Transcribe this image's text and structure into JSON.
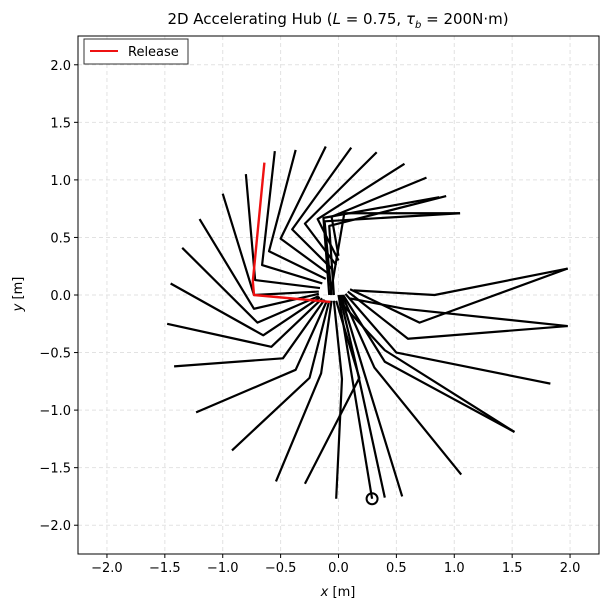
{
  "chart_data": {
    "type": "line",
    "title": "2D Accelerating Hub (L = 0.75, τb = 200N·m)",
    "title_parts": {
      "prefix": "2D Accelerating Hub (",
      "L_var": "L",
      "L_eq": " = 0.75, ",
      "tau_var": "τ",
      "tau_sub": "b",
      "tau_eq": " = 200N·m)"
    },
    "xlabel": {
      "var": "x",
      "unit": " [m]"
    },
    "ylabel": {
      "var": "y",
      "unit": " [m]"
    },
    "xlim": [
      -2.25,
      2.25
    ],
    "ylim": [
      -2.25,
      2.25
    ],
    "xticks": [
      -2.0,
      -1.5,
      -1.0,
      -0.5,
      0.0,
      0.5,
      1.0,
      1.5,
      2.0
    ],
    "yticks": [
      -2.0,
      -1.5,
      -1.0,
      -0.5,
      0.0,
      0.5,
      1.0,
      1.5,
      2.0
    ],
    "xtick_labels": [
      "−2.0",
      "−1.5",
      "−1.0",
      "−0.5",
      "0.0",
      "0.5",
      "1.0",
      "1.5",
      "2.0"
    ],
    "ytick_labels": [
      "−2.0",
      "−1.5",
      "−1.0",
      "−0.5",
      "0.0",
      "0.5",
      "1.0",
      "1.5",
      "2.0"
    ],
    "grid": true,
    "legend": {
      "placement": "top-left",
      "entries": [
        {
          "name": "Release",
          "color": "#ee1111"
        }
      ]
    },
    "arm_color": "#000000",
    "release_color": "#ee1111",
    "arms": [
      [
        [
          0.0,
          0.0
        ],
        [
          0.0,
          0.0
        ],
        [
          0.29,
          -1.77
        ]
      ],
      [
        [
          0.01,
          0.0
        ],
        [
          0.15,
          -0.6
        ],
        [
          0.4,
          -1.76
        ]
      ],
      [
        [
          0.02,
          0.0
        ],
        [
          0.22,
          -0.67
        ],
        [
          0.55,
          -1.75
        ]
      ],
      [
        [
          0.03,
          0.0
        ],
        [
          0.31,
          -0.63
        ],
        [
          1.06,
          -1.56
        ]
      ],
      [
        [
          0.04,
          0.0
        ],
        [
          0.4,
          -0.58
        ],
        [
          1.52,
          -1.19
        ]
      ],
      [
        [
          0.06,
          0.01
        ],
        [
          0.5,
          -0.5
        ],
        [
          1.83,
          -0.77
        ]
      ],
      [
        [
          0.08,
          0.03
        ],
        [
          0.6,
          -0.38
        ],
        [
          1.98,
          -0.27
        ]
      ],
      [
        [
          0.1,
          0.05
        ],
        [
          0.7,
          -0.24
        ],
        [
          1.98,
          0.23
        ]
      ],
      [
        [
          0.05,
          -0.1
        ],
        [
          0.4,
          -0.48
        ],
        [
          1.52,
          -1.19
        ]
      ],
      [
        [
          0.13,
          0.04
        ],
        [
          0.83,
          0.0
        ],
        [
          1.98,
          0.23
        ]
      ],
      [
        [
          0.1,
          -0.03
        ],
        [
          0.57,
          -0.12
        ],
        [
          1.98,
          -0.27
        ]
      ],
      [
        [
          -0.02,
          -0.05
        ],
        [
          0.18,
          -0.72
        ],
        [
          -0.29,
          -1.64
        ]
      ],
      [
        [
          -0.04,
          -0.05
        ],
        [
          0.03,
          -0.73
        ],
        [
          -0.02,
          -1.77
        ]
      ],
      [
        [
          -0.06,
          -0.05
        ],
        [
          -0.15,
          -0.68
        ],
        [
          -0.54,
          -1.62
        ]
      ],
      [
        [
          -0.08,
          -0.05
        ],
        [
          -0.25,
          -0.72
        ],
        [
          -0.92,
          -1.35
        ]
      ],
      [
        [
          -0.1,
          -0.05
        ],
        [
          -0.37,
          -0.65
        ],
        [
          -1.23,
          -1.02
        ]
      ],
      [
        [
          -0.12,
          -0.04
        ],
        [
          -0.48,
          -0.55
        ],
        [
          -1.42,
          -0.62
        ]
      ],
      [
        [
          -0.14,
          -0.03
        ],
        [
          -0.58,
          -0.45
        ],
        [
          -1.48,
          -0.25
        ]
      ],
      [
        [
          -0.16,
          -0.02
        ],
        [
          -0.65,
          -0.35
        ],
        [
          -1.45,
          0.1
        ]
      ],
      [
        [
          -0.17,
          -0.01
        ],
        [
          -0.7,
          -0.24
        ],
        [
          -1.35,
          0.41
        ]
      ],
      [
        [
          -0.17,
          0.01
        ],
        [
          -0.73,
          -0.12
        ],
        [
          -1.2,
          0.66
        ]
      ],
      [
        [
          -0.17,
          0.03
        ],
        [
          -0.73,
          0.0
        ],
        [
          -1.0,
          0.88
        ]
      ],
      [
        [
          -0.16,
          0.06
        ],
        [
          -0.72,
          0.13
        ],
        [
          -0.8,
          1.05
        ]
      ],
      [
        [
          -0.14,
          0.1
        ],
        [
          -0.66,
          0.26
        ],
        [
          -0.55,
          1.25
        ]
      ],
      [
        [
          -0.11,
          0.14
        ],
        [
          -0.6,
          0.38
        ],
        [
          -0.37,
          1.26
        ]
      ],
      [
        [
          -0.08,
          0.18
        ],
        [
          -0.5,
          0.49
        ],
        [
          -0.11,
          1.29
        ]
      ],
      [
        [
          -0.05,
          0.22
        ],
        [
          -0.4,
          0.57
        ],
        [
          0.11,
          1.28
        ]
      ],
      [
        [
          -0.02,
          0.26
        ],
        [
          -0.29,
          0.62
        ],
        [
          0.33,
          1.24
        ]
      ],
      [
        [
          0.0,
          0.3
        ],
        [
          -0.18,
          0.66
        ],
        [
          0.57,
          1.14
        ]
      ],
      [
        [
          0.0,
          0.34
        ],
        [
          -0.06,
          0.68
        ],
        [
          0.76,
          1.02
        ]
      ],
      [
        [
          -0.04,
          0.0
        ],
        [
          -0.08,
          0.6
        ],
        [
          0.93,
          0.86
        ]
      ],
      [
        [
          -0.06,
          0.0
        ],
        [
          -0.12,
          0.64
        ],
        [
          1.05,
          0.71
        ]
      ],
      [
        [
          -0.07,
          0.0
        ],
        [
          0.05,
          0.71
        ],
        [
          1.05,
          0.71
        ]
      ],
      [
        [
          -0.08,
          0.0
        ],
        [
          -0.13,
          0.67
        ],
        [
          0.87,
          0.85
        ]
      ]
    ],
    "release_arm": [
      [
        -0.07,
        -0.06
      ],
      [
        -0.73,
        0.0
      ],
      [
        -0.74,
        0.12
      ],
      [
        -0.64,
        1.15
      ]
    ],
    "release_tip_marker": [
      0.29,
      -1.77
    ]
  }
}
